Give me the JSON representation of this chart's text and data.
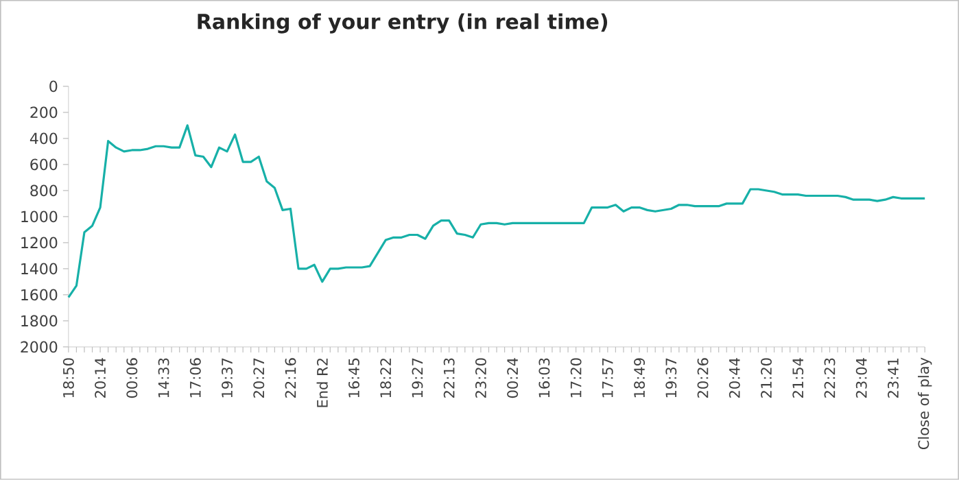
{
  "chart_data": {
    "type": "line",
    "title": "Ranking of your entry (in real time)",
    "categories": [
      "18:50",
      null,
      null,
      null,
      "20:14",
      null,
      null,
      null,
      "00:06",
      null,
      null,
      null,
      "14:33",
      null,
      null,
      null,
      "17:06",
      null,
      null,
      null,
      "19:37",
      null,
      null,
      null,
      "20:27",
      null,
      null,
      null,
      "22:16",
      null,
      null,
      null,
      "End R2",
      null,
      null,
      null,
      "16:45",
      null,
      null,
      null,
      "18:22",
      null,
      null,
      null,
      "19:27",
      null,
      null,
      null,
      "22:13",
      null,
      null,
      null,
      "23:20",
      null,
      null,
      null,
      "00:24",
      null,
      null,
      null,
      "16:03",
      null,
      null,
      null,
      "17:20",
      null,
      null,
      null,
      "17:57",
      null,
      null,
      null,
      "18:49",
      null,
      null,
      null,
      "19:37",
      null,
      null,
      null,
      "20:26",
      null,
      null,
      null,
      "20:44",
      null,
      null,
      null,
      "21:20",
      null,
      null,
      null,
      "21:54",
      null,
      null,
      null,
      "22:23",
      null,
      null,
      null,
      "23:04",
      null,
      null,
      null,
      "23:41",
      null,
      null,
      null,
      "Close of play"
    ],
    "series": [
      {
        "color": "#17b0a8",
        "values": [
          1620,
          1530,
          1120,
          1070,
          930,
          420,
          470,
          500,
          490,
          490,
          480,
          460,
          460,
          470,
          470,
          300,
          530,
          540,
          620,
          470,
          500,
          370,
          580,
          580,
          540,
          730,
          780,
          950,
          940,
          1400,
          1400,
          1370,
          1500,
          1400,
          1400,
          1390,
          1390,
          1390,
          1380,
          1280,
          1180,
          1160,
          1160,
          1140,
          1140,
          1170,
          1070,
          1030,
          1030,
          1130,
          1140,
          1160,
          1060,
          1050,
          1050,
          1060,
          1050,
          1050,
          1050,
          1050,
          1050,
          1050,
          1050,
          1050,
          1050,
          1050,
          930,
          930,
          930,
          910,
          960,
          930,
          930,
          950,
          960,
          950,
          940,
          910,
          910,
          920,
          920,
          920,
          920,
          900,
          900,
          900,
          790,
          790,
          800,
          810,
          830,
          830,
          830,
          840,
          840,
          840,
          840,
          840,
          850,
          870,
          870,
          870,
          880,
          870,
          850,
          860,
          860,
          860,
          860
        ]
      }
    ],
    "ylim": [
      2000,
      0
    ],
    "yticks": [
      0,
      200,
      400,
      600,
      800,
      1000,
      1200,
      1400,
      1600,
      1800,
      2000
    ],
    "line_style": "solid",
    "marker": "none",
    "grid": false,
    "legend": false
  }
}
